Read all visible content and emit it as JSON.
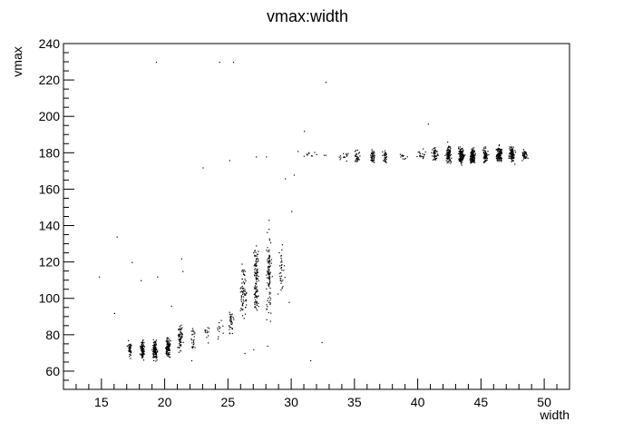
{
  "chart_data": {
    "type": "scatter",
    "title": "vmax:width",
    "xlabel": "width",
    "ylabel": "vmax",
    "xlim": [
      12,
      52
    ],
    "ylim": [
      50,
      240
    ],
    "x_ticks_major": [
      15,
      20,
      25,
      30,
      35,
      40,
      45,
      50
    ],
    "y_ticks_major": [
      60,
      80,
      100,
      120,
      140,
      160,
      180,
      200,
      220,
      240
    ],
    "grid": false,
    "legend": "none",
    "marker_color": "#000000",
    "clusters": [
      {
        "x_center": 17.2,
        "x_spread": 0.15,
        "y_range": [
          64,
          80
        ],
        "count": 40
      },
      {
        "x_center": 18.2,
        "x_spread": 0.15,
        "y_range": [
          64,
          80
        ],
        "count": 80
      },
      {
        "x_center": 19.2,
        "x_spread": 0.18,
        "y_range": [
          63,
          80
        ],
        "count": 110
      },
      {
        "x_center": 20.2,
        "x_spread": 0.18,
        "y_range": [
          64,
          82
        ],
        "count": 100
      },
      {
        "x_center": 21.2,
        "x_spread": 0.18,
        "y_range": [
          64,
          92
        ],
        "count": 60
      },
      {
        "x_center": 22.2,
        "x_spread": 0.2,
        "y_range": [
          66,
          90
        ],
        "count": 25
      },
      {
        "x_center": 23.3,
        "x_spread": 0.25,
        "y_range": [
          72,
          90
        ],
        "count": 12
      },
      {
        "x_center": 24.3,
        "x_spread": 0.25,
        "y_range": [
          75,
          92
        ],
        "count": 12
      },
      {
        "x_center": 25.2,
        "x_spread": 0.2,
        "y_range": [
          74,
          100
        ],
        "count": 35
      },
      {
        "x_center": 26.2,
        "x_spread": 0.2,
        "y_range": [
          75,
          134
        ],
        "count": 70
      },
      {
        "x_center": 27.2,
        "x_spread": 0.2,
        "y_range": [
          73,
          146
        ],
        "count": 110
      },
      {
        "x_center": 28.2,
        "x_spread": 0.2,
        "y_range": [
          78,
          150
        ],
        "count": 100
      },
      {
        "x_center": 29.2,
        "x_spread": 0.25,
        "y_range": [
          85,
          146
        ],
        "count": 35
      },
      {
        "x_center": 31.5,
        "x_spread": 1.2,
        "y_range": [
          176,
          182
        ],
        "count": 12
      },
      {
        "x_center": 34.2,
        "x_spread": 0.4,
        "y_range": [
          174,
          182
        ],
        "count": 15
      },
      {
        "x_center": 35.2,
        "x_spread": 0.18,
        "y_range": [
          173,
          184
        ],
        "count": 30
      },
      {
        "x_center": 36.4,
        "x_spread": 0.18,
        "y_range": [
          172,
          185
        ],
        "count": 40
      },
      {
        "x_center": 37.4,
        "x_spread": 0.18,
        "y_range": [
          172,
          184
        ],
        "count": 30
      },
      {
        "x_center": 38.8,
        "x_spread": 0.5,
        "y_range": [
          174,
          182
        ],
        "count": 12
      },
      {
        "x_center": 40.2,
        "x_spread": 0.4,
        "y_range": [
          174,
          184
        ],
        "count": 18
      },
      {
        "x_center": 41.3,
        "x_spread": 0.2,
        "y_range": [
          173,
          186
        ],
        "count": 45
      },
      {
        "x_center": 42.4,
        "x_spread": 0.2,
        "y_range": [
          171,
          188
        ],
        "count": 90
      },
      {
        "x_center": 43.4,
        "x_spread": 0.22,
        "y_range": [
          171,
          187
        ],
        "count": 140
      },
      {
        "x_center": 44.3,
        "x_spread": 0.2,
        "y_range": [
          171,
          186
        ],
        "count": 120
      },
      {
        "x_center": 45.3,
        "x_spread": 0.2,
        "y_range": [
          172,
          186
        ],
        "count": 70
      },
      {
        "x_center": 46.4,
        "x_spread": 0.22,
        "y_range": [
          172,
          187
        ],
        "count": 120
      },
      {
        "x_center": 47.4,
        "x_spread": 0.2,
        "y_range": [
          173,
          186
        ],
        "count": 100
      },
      {
        "x_center": 48.4,
        "x_spread": 0.18,
        "y_range": [
          174,
          184
        ],
        "count": 40
      }
    ],
    "outliers": [
      [
        19.3,
        230
      ],
      [
        24.3,
        230
      ],
      [
        25.4,
        230
      ],
      [
        32.7,
        219
      ],
      [
        31.0,
        192
      ],
      [
        40.8,
        196
      ],
      [
        16.2,
        134
      ],
      [
        21.3,
        122
      ],
      [
        18.1,
        110
      ],
      [
        19.4,
        112
      ],
      [
        14.8,
        112
      ],
      [
        21.4,
        115
      ],
      [
        17.4,
        120
      ],
      [
        31.5,
        66
      ],
      [
        32.4,
        76
      ],
      [
        16.0,
        92
      ],
      [
        23.0,
        172
      ],
      [
        25.1,
        176
      ],
      [
        27.2,
        178
      ],
      [
        28.0,
        178
      ],
      [
        29.5,
        166
      ],
      [
        30.2,
        168
      ],
      [
        30.5,
        181
      ],
      [
        30.0,
        148
      ],
      [
        29.8,
        98
      ],
      [
        26.3,
        70
      ],
      [
        27.0,
        72
      ],
      [
        28.1,
        74
      ],
      [
        22.1,
        66
      ],
      [
        20.5,
        96
      ]
    ]
  }
}
